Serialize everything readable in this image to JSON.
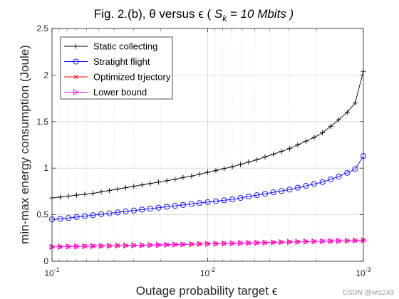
{
  "chart_data": {
    "type": "line",
    "title_main": "Fig. 2.(b), θ versus ϵ (  ",
    "title_var": "S",
    "title_sub": "k",
    "title_tail": " = 10 Mbits )",
    "xlabel": "Outage probability target ϵ",
    "ylabel": "min-max energy consumption (Joule)",
    "xscale": "log",
    "xdir": "reverse",
    "xlim": [
      0.1,
      0.001
    ],
    "ylim": [
      0,
      2.5
    ],
    "grid": true,
    "legend_position": "top-left",
    "x_ticks": [
      {
        "value": 0.1,
        "base": "10",
        "exp": "-1"
      },
      {
        "value": 0.01,
        "base": "10",
        "exp": "-2"
      },
      {
        "value": 0.001,
        "base": "10",
        "exp": "-3"
      }
    ],
    "y_ticks": [
      "0",
      "0.5",
      "1",
      "1.5",
      "2",
      "2.5"
    ],
    "x": [
      0.1,
      0.0886,
      0.0785,
      0.0695,
      0.0616,
      0.0546,
      0.0483,
      0.0428,
      0.0379,
      0.0336,
      0.0298,
      0.0264,
      0.0234,
      0.0207,
      0.0183,
      0.0162,
      0.0144,
      0.0127,
      0.0113,
      0.01,
      0.00886,
      0.00785,
      0.00695,
      0.00616,
      0.00546,
      0.00483,
      0.00428,
      0.00379,
      0.00336,
      0.00298,
      0.00264,
      0.00234,
      0.00207,
      0.00183,
      0.00162,
      0.00144,
      0.00127,
      0.00113,
      0.001
    ],
    "series": [
      {
        "name": "Static collecting",
        "color": "#000000",
        "marker": "plus",
        "values": [
          0.68,
          0.69,
          0.7,
          0.71,
          0.72,
          0.73,
          0.745,
          0.76,
          0.775,
          0.79,
          0.805,
          0.82,
          0.835,
          0.85,
          0.865,
          0.88,
          0.9,
          0.915,
          0.935,
          0.955,
          0.975,
          0.995,
          1.015,
          1.04,
          1.065,
          1.09,
          1.12,
          1.15,
          1.18,
          1.21,
          1.25,
          1.29,
          1.33,
          1.38,
          1.45,
          1.52,
          1.6,
          1.7,
          2.04
        ]
      },
      {
        "name": "Stratight flight",
        "color": "#0000ff",
        "marker": "circle",
        "values": [
          0.45,
          0.455,
          0.465,
          0.475,
          0.485,
          0.495,
          0.505,
          0.515,
          0.525,
          0.535,
          0.545,
          0.555,
          0.565,
          0.575,
          0.585,
          0.595,
          0.605,
          0.615,
          0.625,
          0.635,
          0.645,
          0.655,
          0.665,
          0.68,
          0.695,
          0.71,
          0.725,
          0.74,
          0.755,
          0.77,
          0.79,
          0.81,
          0.83,
          0.85,
          0.88,
          0.91,
          0.95,
          0.99,
          1.13
        ]
      },
      {
        "name": "Optimized trjectory",
        "color": "#ff0000",
        "marker": "x",
        "values": [
          0.155,
          0.156,
          0.158,
          0.16,
          0.161,
          0.163,
          0.164,
          0.166,
          0.168,
          0.169,
          0.171,
          0.172,
          0.174,
          0.176,
          0.178,
          0.179,
          0.181,
          0.183,
          0.185,
          0.187,
          0.189,
          0.191,
          0.193,
          0.195,
          0.197,
          0.199,
          0.201,
          0.203,
          0.205,
          0.207,
          0.209,
          0.211,
          0.213,
          0.215,
          0.217,
          0.219,
          0.221,
          0.223,
          0.225
        ]
      },
      {
        "name": "Lower bound",
        "color": "#ff00ff",
        "marker": "triangle-right",
        "values": [
          0.155,
          0.156,
          0.158,
          0.16,
          0.161,
          0.163,
          0.164,
          0.166,
          0.168,
          0.169,
          0.171,
          0.172,
          0.174,
          0.176,
          0.178,
          0.179,
          0.181,
          0.183,
          0.185,
          0.187,
          0.189,
          0.191,
          0.193,
          0.195,
          0.197,
          0.199,
          0.201,
          0.203,
          0.205,
          0.207,
          0.209,
          0.211,
          0.213,
          0.215,
          0.217,
          0.219,
          0.221,
          0.223,
          0.225
        ]
      }
    ]
  },
  "watermark": "CSDN @wlz249"
}
